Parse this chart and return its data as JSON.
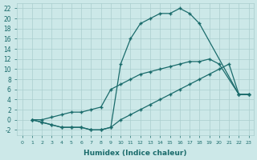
{
  "xlabel": "Humidex (Indice chaleur)",
  "bg_color": "#cce8e8",
  "grid_color": "#aacece",
  "line_color": "#1a6b6b",
  "xlim": [
    -0.5,
    23.5
  ],
  "ylim": [
    -3,
    23
  ],
  "xticks": [
    0,
    1,
    2,
    3,
    4,
    5,
    6,
    7,
    8,
    9,
    10,
    11,
    12,
    13,
    14,
    15,
    16,
    17,
    18,
    19,
    20,
    21,
    22,
    23
  ],
  "yticks": [
    -2,
    0,
    2,
    4,
    6,
    8,
    10,
    12,
    14,
    16,
    18,
    20,
    22
  ],
  "line1_x": [
    1,
    2,
    3,
    4,
    5,
    6,
    7,
    8,
    9,
    10,
    11,
    12,
    13,
    14,
    15,
    16,
    17,
    18,
    22,
    23
  ],
  "line1_y": [
    0,
    -0.5,
    -1,
    -1.5,
    -1.5,
    -1.5,
    -2,
    -2,
    -1.5,
    11,
    16,
    19,
    20,
    21,
    21,
    22,
    21,
    19,
    5,
    5
  ],
  "line2_x": [
    1,
    2,
    3,
    4,
    5,
    6,
    7,
    8,
    9,
    10,
    11,
    12,
    13,
    14,
    15,
    16,
    17,
    18,
    19,
    20,
    21,
    22,
    23
  ],
  "line2_y": [
    0,
    -0.5,
    -1,
    -1.5,
    -1.5,
    -1.5,
    -2,
    -2,
    -1.5,
    0,
    1,
    2,
    3,
    4,
    5,
    6,
    7,
    8,
    9,
    10,
    11,
    5,
    5
  ],
  "line3_x": [
    1,
    2,
    3,
    4,
    5,
    6,
    7,
    8,
    9,
    10,
    11,
    12,
    13,
    14,
    15,
    16,
    17,
    18,
    19,
    20,
    22,
    23
  ],
  "line3_y": [
    0,
    0,
    0.5,
    1,
    1.5,
    1.5,
    2,
    2.5,
    6,
    7,
    8,
    9,
    9.5,
    10,
    10.5,
    11,
    11.5,
    11.5,
    12,
    11,
    5,
    5
  ]
}
